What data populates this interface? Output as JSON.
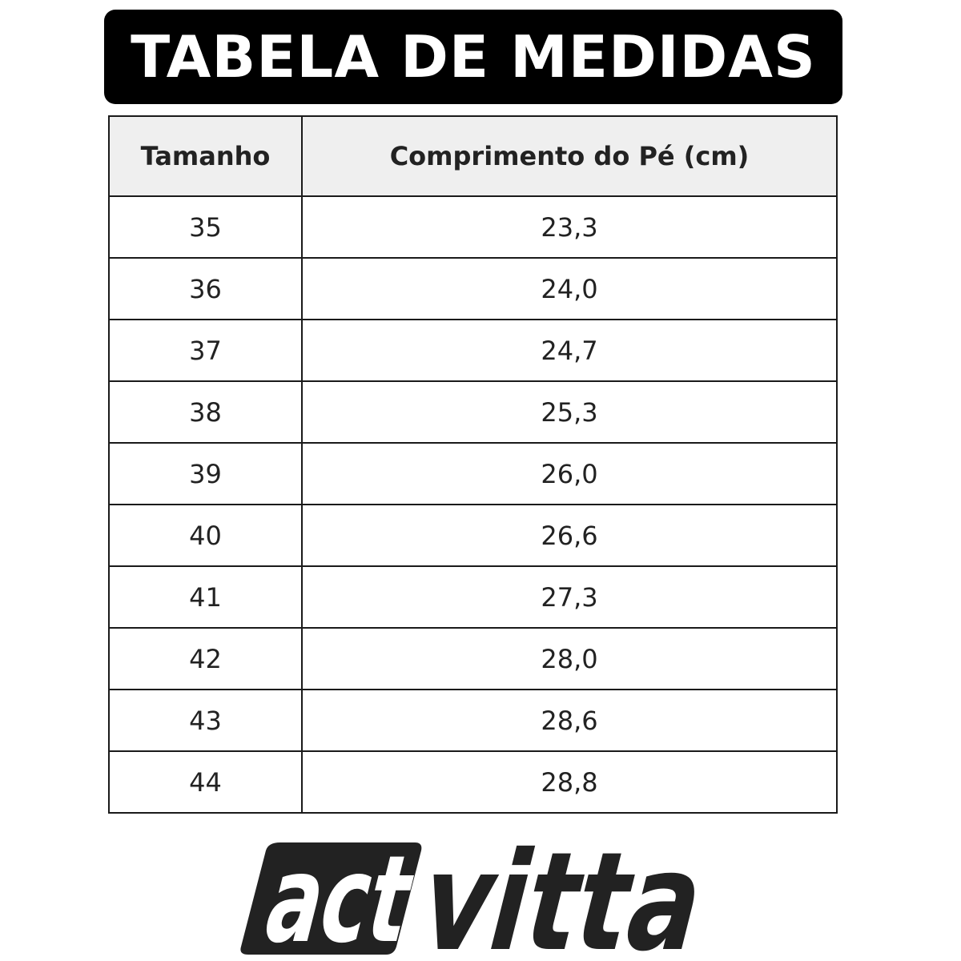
{
  "title": "TABELA DE MEDIDAS",
  "table": {
    "headers": [
      "Tamanho",
      "Comprimento do Pé (cm)"
    ],
    "rows": [
      [
        "35",
        "23,3"
      ],
      [
        "36",
        "24,0"
      ],
      [
        "37",
        "24,7"
      ],
      [
        "38",
        "25,3"
      ],
      [
        "39",
        "26,0"
      ],
      [
        "40",
        "26,6"
      ],
      [
        "41",
        "27,3"
      ],
      [
        "42",
        "28,0"
      ],
      [
        "43",
        "28,6"
      ],
      [
        "44",
        "28,8"
      ]
    ]
  },
  "logo": {
    "part1": "act",
    "part2": "vitta"
  }
}
